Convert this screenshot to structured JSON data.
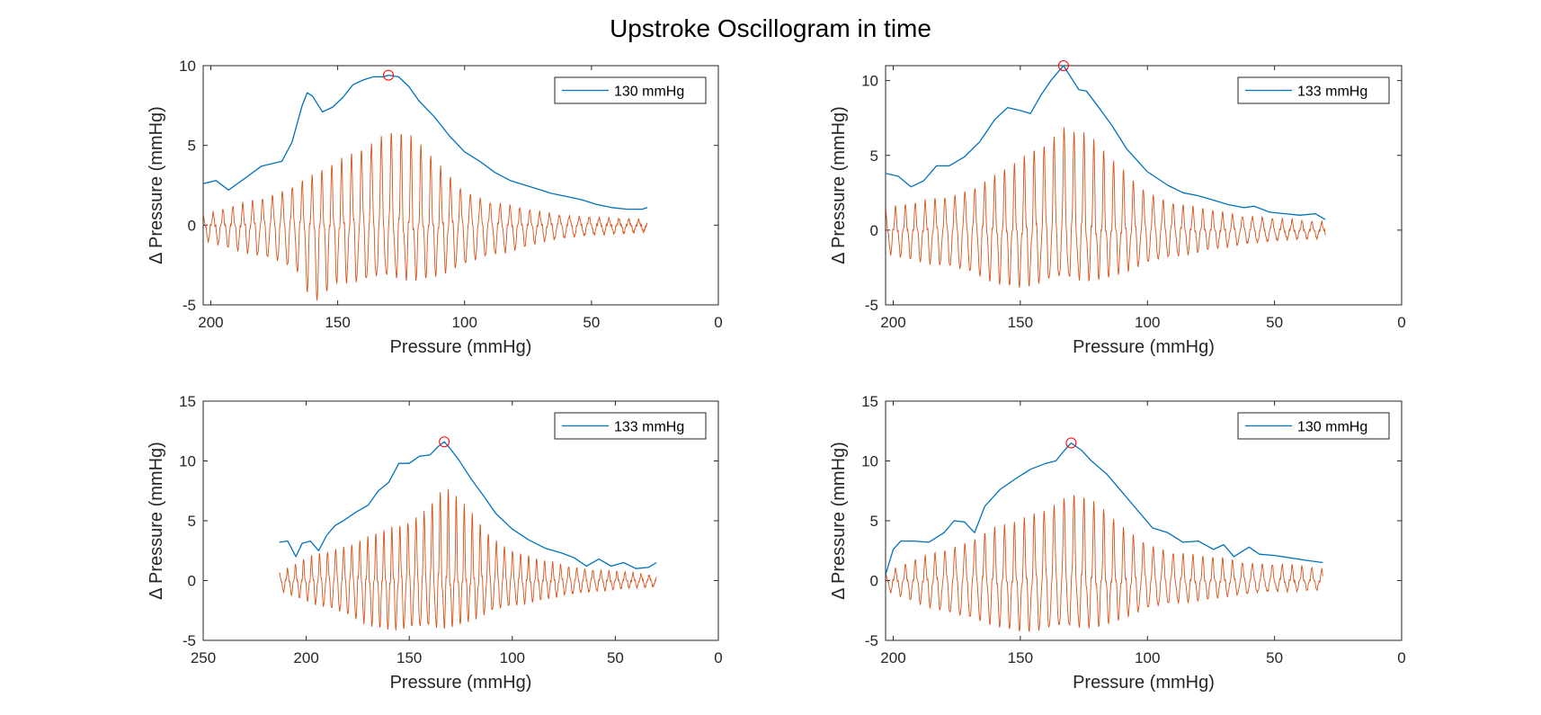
{
  "figure": {
    "title": "Upstroke Oscillogram in time"
  },
  "colors": {
    "envelope": "#0072BD",
    "oscillation": "#D95319",
    "peak_marker": "#FF0000",
    "axes": "#262626"
  },
  "chart_data": [
    {
      "type": "line",
      "position": "top-left",
      "xlabel": "Pressure (mmHg)",
      "ylabel": "Δ Pressure (mmHg)",
      "xlim": [
        0,
        203
      ],
      "x_reversed": true,
      "ylim": [
        -5,
        10
      ],
      "xticks": [
        200,
        150,
        100,
        50,
        0
      ],
      "yticks": [
        -5,
        0,
        5,
        10
      ],
      "legend": {
        "label": "130 mmHg",
        "placement": "top-right"
      },
      "x_start": 203,
      "x_end": 28,
      "envelope": {
        "x": [
          203,
          198,
          193,
          186,
          180,
          172,
          168,
          164,
          162,
          160,
          156,
          152,
          148,
          144,
          140,
          136,
          132,
          130,
          126,
          122,
          118,
          112,
          106,
          100,
          94,
          88,
          82,
          76,
          72,
          66,
          60,
          54,
          48,
          42,
          36,
          30,
          28
        ],
        "y": [
          2.6,
          2.8,
          2.2,
          3.0,
          3.7,
          4.0,
          5.2,
          7.5,
          8.3,
          8.1,
          7.1,
          7.4,
          8.0,
          8.8,
          9.1,
          9.3,
          9.3,
          9.4,
          9.3,
          8.7,
          7.8,
          6.8,
          5.6,
          4.6,
          4.0,
          3.3,
          2.8,
          2.5,
          2.3,
          2.0,
          1.8,
          1.6,
          1.3,
          1.1,
          1.0,
          1.0,
          1.1
        ]
      },
      "peak": {
        "x": 130,
        "y": 9.4
      },
      "oscillation": {
        "period": 3.9,
        "amplitude": {
          "x": [
            203,
            190,
            175,
            165,
            160,
            150,
            140,
            132,
            130,
            120,
            110,
            100,
            90,
            80,
            70,
            60,
            50,
            40,
            28
          ],
          "pos": [
            0.6,
            1.2,
            2.0,
            2.7,
            3.0,
            3.8,
            5.0,
            6.0,
            6.2,
            5.3,
            3.6,
            2.2,
            1.5,
            1.1,
            0.8,
            0.6,
            0.5,
            0.4,
            0.3
          ],
          "neg": [
            0.9,
            1.5,
            2.2,
            3.0,
            4.8,
            3.4,
            3.6,
            3.4,
            3.3,
            3.2,
            3.0,
            2.5,
            1.9,
            1.5,
            1.0,
            0.8,
            0.6,
            0.5,
            0.4
          ]
        }
      }
    },
    {
      "type": "line",
      "position": "top-right",
      "xlabel": "Pressure (mmHg)",
      "ylabel": "Δ Pressure (mmHg)",
      "xlim": [
        0,
        203
      ],
      "x_reversed": true,
      "ylim": [
        -5,
        11
      ],
      "xticks": [
        200,
        150,
        100,
        50,
        0
      ],
      "yticks": [
        -5,
        0,
        5,
        10
      ],
      "legend": {
        "label": "133 mmHg",
        "placement": "top-right"
      },
      "x_start": 203,
      "x_end": 30,
      "envelope": {
        "x": [
          203,
          198,
          193,
          188,
          183,
          178,
          172,
          166,
          160,
          155,
          150,
          146,
          142,
          138,
          133,
          130,
          127,
          124,
          120,
          114,
          108,
          100,
          92,
          86,
          80,
          74,
          68,
          62,
          58,
          52,
          46,
          40,
          34,
          30
        ],
        "y": [
          3.8,
          3.6,
          2.9,
          3.3,
          4.3,
          4.3,
          4.9,
          5.9,
          7.4,
          8.2,
          8.0,
          7.8,
          9.0,
          10.0,
          11.0,
          10.2,
          9.4,
          9.3,
          8.4,
          7.0,
          5.4,
          3.9,
          3.0,
          2.5,
          2.3,
          2.0,
          1.7,
          1.5,
          1.6,
          1.2,
          1.1,
          1.0,
          1.1,
          0.7
        ]
      },
      "peak": {
        "x": 133,
        "y": 11.0
      },
      "oscillation": {
        "period": 3.9,
        "amplitude": {
          "x": [
            203,
            190,
            175,
            160,
            150,
            140,
            133,
            125,
            115,
            105,
            95,
            85,
            75,
            65,
            55,
            45,
            30
          ],
          "pos": [
            1.4,
            1.8,
            2.5,
            3.5,
            4.5,
            6.0,
            7.3,
            6.5,
            4.7,
            3.2,
            2.2,
            1.6,
            1.3,
            1.0,
            0.9,
            0.7,
            0.5
          ],
          "neg": [
            1.5,
            2.0,
            2.6,
            3.4,
            3.6,
            3.5,
            3.4,
            3.2,
            2.9,
            2.5,
            2.0,
            1.6,
            1.2,
            1.0,
            0.8,
            0.6,
            0.5
          ]
        }
      }
    },
    {
      "type": "line",
      "position": "bottom-left",
      "xlabel": "Pressure (mmHg)",
      "ylabel": "Δ Pressure (mmHg)",
      "xlim": [
        0,
        250
      ],
      "x_reversed": true,
      "ylim": [
        -5,
        15
      ],
      "xticks": [
        250,
        200,
        150,
        100,
        50,
        0
      ],
      "yticks": [
        -5,
        0,
        5,
        10,
        15
      ],
      "legend": {
        "label": "133 mmHg",
        "placement": "top-right"
      },
      "x_start": 213,
      "x_end": 30,
      "envelope": {
        "x": [
          213,
          209,
          205,
          202,
          198,
          194,
          190,
          186,
          182,
          176,
          170,
          165,
          160,
          155,
          150,
          145,
          140,
          136,
          133,
          130,
          126,
          120,
          114,
          108,
          100,
          92,
          84,
          76,
          70,
          64,
          58,
          52,
          46,
          40,
          34,
          30
        ],
        "y": [
          3.2,
          3.3,
          2.0,
          3.1,
          3.3,
          2.5,
          3.8,
          4.6,
          5.0,
          5.7,
          6.3,
          7.5,
          8.2,
          9.8,
          9.8,
          10.4,
          10.5,
          11.2,
          11.6,
          11.0,
          10.1,
          8.5,
          7.1,
          5.6,
          4.3,
          3.4,
          2.7,
          2.3,
          1.9,
          1.2,
          1.8,
          1.2,
          1.5,
          1.0,
          1.1,
          1.5
        ]
      },
      "peak": {
        "x": 133,
        "y": 11.6
      },
      "oscillation": {
        "period": 3.9,
        "amplitude": {
          "x": [
            213,
            200,
            185,
            170,
            155,
            145,
            135,
            133,
            125,
            115,
            105,
            95,
            85,
            75,
            65,
            55,
            45,
            30
          ],
          "pos": [
            0.6,
            1.8,
            2.8,
            3.5,
            4.5,
            5.8,
            7.4,
            7.6,
            6.4,
            4.6,
            3.1,
            2.1,
            1.6,
            1.3,
            1.0,
            0.8,
            0.7,
            0.4
          ],
          "neg": [
            0.8,
            1.6,
            2.6,
            3.6,
            4.0,
            4.1,
            3.8,
            3.7,
            3.3,
            2.9,
            2.4,
            1.9,
            1.5,
            1.2,
            1.0,
            0.8,
            0.6,
            0.5
          ]
        }
      }
    },
    {
      "type": "line",
      "position": "bottom-right",
      "xlabel": "Pressure (mmHg)",
      "ylabel": "Δ Pressure (mmHg)",
      "xlim": [
        0,
        203
      ],
      "x_reversed": true,
      "ylim": [
        -5,
        15
      ],
      "xticks": [
        200,
        150,
        100,
        50,
        0
      ],
      "yticks": [
        -5,
        0,
        5,
        10,
        15
      ],
      "legend": {
        "label": "130 mmHg",
        "placement": "top-right"
      },
      "x_start": 203,
      "x_end": 31,
      "envelope": {
        "x": [
          203,
          200,
          197,
          192,
          186,
          180,
          176,
          172,
          168,
          164,
          158,
          152,
          146,
          140,
          136,
          133,
          130,
          126,
          122,
          116,
          110,
          104,
          98,
          92,
          86,
          80,
          74,
          70,
          66,
          60,
          56,
          50,
          44,
          38,
          31
        ],
        "y": [
          0.5,
          2.6,
          3.3,
          3.3,
          3.2,
          4.0,
          5.0,
          4.9,
          4.0,
          6.2,
          7.6,
          8.5,
          9.3,
          9.8,
          10.0,
          10.8,
          11.5,
          10.9,
          10.0,
          8.9,
          7.4,
          5.9,
          4.4,
          4.0,
          3.2,
          3.3,
          2.6,
          3.0,
          2.0,
          2.8,
          2.2,
          2.1,
          1.9,
          1.7,
          1.5
        ]
      },
      "peak": {
        "x": 130,
        "y": 11.5
      },
      "oscillation": {
        "period": 3.9,
        "amplitude": {
          "x": [
            203,
            190,
            175,
            160,
            150,
            140,
            130,
            120,
            110,
            100,
            90,
            80,
            70,
            60,
            50,
            40,
            31
          ],
          "pos": [
            0.6,
            1.8,
            3.0,
            4.3,
            4.8,
            6.2,
            7.7,
            6.2,
            4.3,
            3.2,
            2.4,
            2.0,
            1.8,
            1.5,
            1.4,
            1.2,
            0.9
          ],
          "neg": [
            0.8,
            1.8,
            3.0,
            3.6,
            4.0,
            4.2,
            4.0,
            3.6,
            3.0,
            2.4,
            1.9,
            1.6,
            1.3,
            1.1,
            0.9,
            0.8,
            0.7
          ]
        }
      }
    }
  ]
}
